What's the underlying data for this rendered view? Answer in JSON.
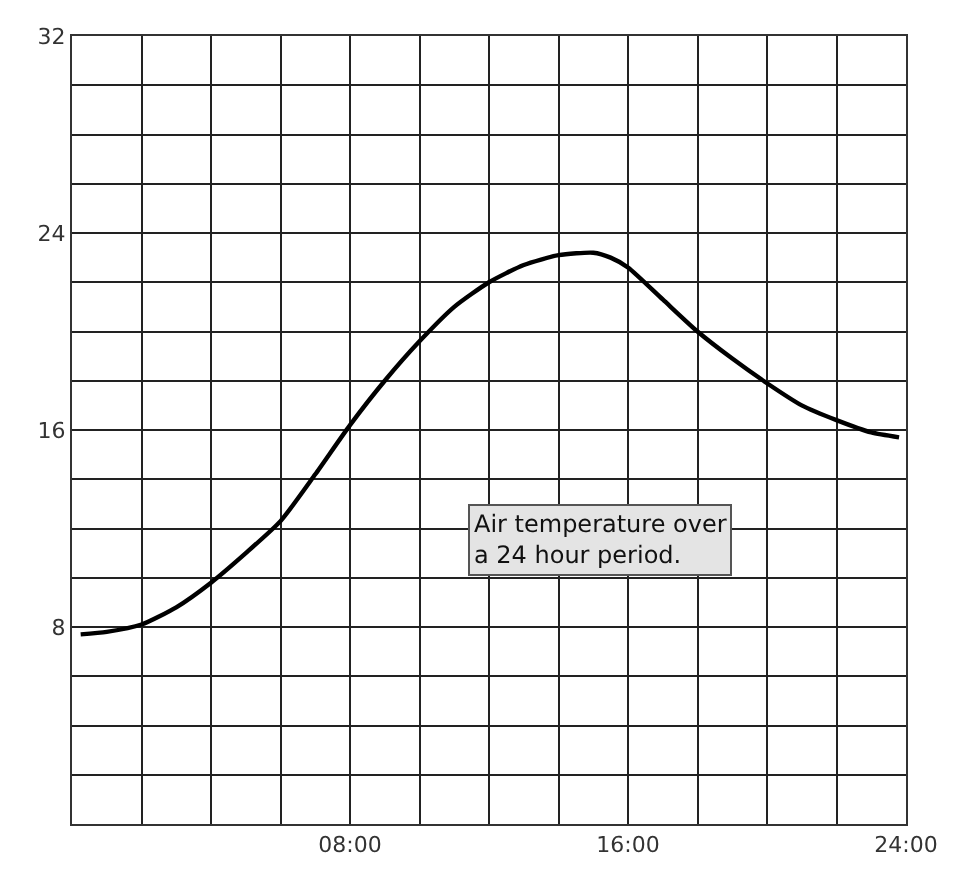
{
  "chart_data": {
    "type": "line",
    "x": [
      0.25,
      1,
      2,
      3,
      4,
      5,
      6,
      7,
      8,
      9,
      10,
      11,
      12,
      13,
      14,
      15,
      15.5,
      16,
      17,
      18,
      19,
      20,
      21,
      22,
      23,
      23.8
    ],
    "series": [
      {
        "color": "#000000",
        "values": [
          7.7,
          7.8,
          8.1,
          8.8,
          9.8,
          11.0,
          12.3,
          14.2,
          16.2,
          18.0,
          19.6,
          21.0,
          22.0,
          22.7,
          23.1,
          23.2,
          23.0,
          22.6,
          21.3,
          20.0,
          18.9,
          17.9,
          17.0,
          16.4,
          15.9,
          15.7
        ]
      }
    ],
    "xlim": [
      0,
      24
    ],
    "xticks": [
      {
        "value": 0,
        "label": null
      },
      {
        "value": 2,
        "label": null
      },
      {
        "value": 4,
        "label": null
      },
      {
        "value": 6,
        "label": null
      },
      {
        "value": 8,
        "label": "08:00"
      },
      {
        "value": 10,
        "label": null
      },
      {
        "value": 12,
        "label": null
      },
      {
        "value": 14,
        "label": null
      },
      {
        "value": 16,
        "label": "16:00"
      },
      {
        "value": 18,
        "label": null
      },
      {
        "value": 20,
        "label": null
      },
      {
        "value": 22,
        "label": null
      },
      {
        "value": 24,
        "label": "24:00"
      }
    ],
    "ylim": [
      0,
      32
    ],
    "yticks": [
      {
        "value": 0,
        "label": null
      },
      {
        "value": 2,
        "label": null
      },
      {
        "value": 4,
        "label": null
      },
      {
        "value": 6,
        "label": null
      },
      8,
      {
        "value": 10,
        "label": null
      },
      {
        "value": 12,
        "label": null
      },
      {
        "value": 14,
        "label": null
      },
      16,
      {
        "value": 18,
        "label": null
      },
      {
        "value": 20,
        "label": null
      },
      {
        "value": 22,
        "label": null
      },
      24,
      {
        "value": 26,
        "label": null
      },
      {
        "value": 28,
        "label": null
      },
      {
        "value": 30,
        "label": null
      },
      32
    ],
    "grid": true,
    "marker": "none",
    "line_style": "solid",
    "annotations": [
      "Air temperature over\na 24 hour period."
    ]
  }
}
